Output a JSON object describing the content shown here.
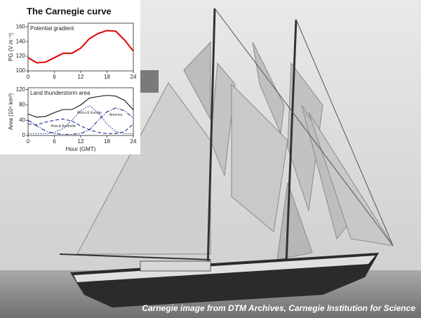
{
  "figure": {
    "title": "The Carnegie curve",
    "caption": "Carnegie image from DTM Archives, Carnegie Institution for Science"
  },
  "chart_data": [
    {
      "type": "line",
      "title": "Potential gradient",
      "y_label": "PG (V m⁻¹)",
      "x": [
        0,
        2,
        4,
        6,
        8,
        10,
        12,
        14,
        16,
        18,
        20,
        22,
        24
      ],
      "series": [
        {
          "name": "Potential gradient",
          "color": "#e00000",
          "style": "solid",
          "values": [
            118,
            111,
            112,
            118,
            124,
            124,
            131,
            144,
            151,
            155,
            154,
            142,
            127
          ]
        }
      ],
      "xlim": [
        0,
        24
      ],
      "xticks": [
        0,
        6,
        12,
        18,
        24
      ],
      "ylim": [
        100,
        165
      ],
      "yticks": [
        100,
        120,
        140,
        160
      ]
    },
    {
      "type": "line",
      "title": "Land thunderstorm area",
      "y_label": "Area (10⁴ km²)",
      "x_label": "Hour (GMT)",
      "x": [
        0,
        2,
        4,
        6,
        8,
        10,
        12,
        14,
        16,
        18,
        20,
        22,
        24
      ],
      "series": [
        {
          "color": "#111111",
          "style": "solid",
          "values": [
            56,
            48,
            50,
            60,
            68,
            68,
            80,
            98,
            102,
            105,
            103,
            92,
            67
          ]
        },
        {
          "name": "Asia & Australia",
          "color": "#1a2a8a",
          "style": "dashed",
          "values": [
            30,
            28,
            35,
            40,
            43,
            38,
            25,
            15,
            8,
            5,
            5,
            10,
            30
          ]
        },
        {
          "name": "Africa & Europe",
          "color": "#1a2a8a",
          "style": "dotted",
          "values": [
            5,
            5,
            5,
            8,
            18,
            40,
            65,
            78,
            60,
            30,
            10,
            5,
            5
          ]
        },
        {
          "name": "America",
          "color": "#1a2a8a",
          "style": "dashdot",
          "values": [
            40,
            25,
            12,
            5,
            3,
            3,
            5,
            15,
            40,
            62,
            72,
            65,
            45
          ]
        }
      ],
      "xlim": [
        0,
        24
      ],
      "xticks": [
        0,
        6,
        12,
        18,
        24
      ],
      "ylim": [
        0,
        125
      ],
      "yticks": [
        0,
        40,
        80,
        120
      ]
    }
  ]
}
